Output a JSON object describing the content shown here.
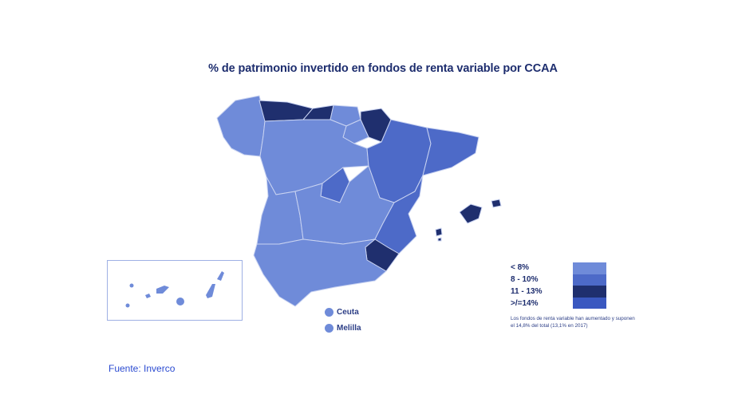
{
  "title": "% de patrimonio invertido en fondos de renta variable por CCAA",
  "legend": {
    "items": [
      {
        "label": "< 8%",
        "color": "#6f8bd9"
      },
      {
        "label": "8 - 10%",
        "color": "#4d6ac8"
      },
      {
        "label": "11 - 13%",
        "color": "#1f2f6e"
      },
      {
        "label": ">/=14%",
        "color": "#3a58c0"
      }
    ],
    "note": "Los fondos de renta variable han aumentado y suponen el 14,8% del total (13,1% en 2017)"
  },
  "cities": {
    "ceuta": "Ceuta",
    "melilla": "Melilla"
  },
  "source": "Fuente: Inverco",
  "colors": {
    "light": "#6f8bd9",
    "mid": "#4d6ac8",
    "dark": "#1f2f6e",
    "border": "#c9d3f1"
  }
}
